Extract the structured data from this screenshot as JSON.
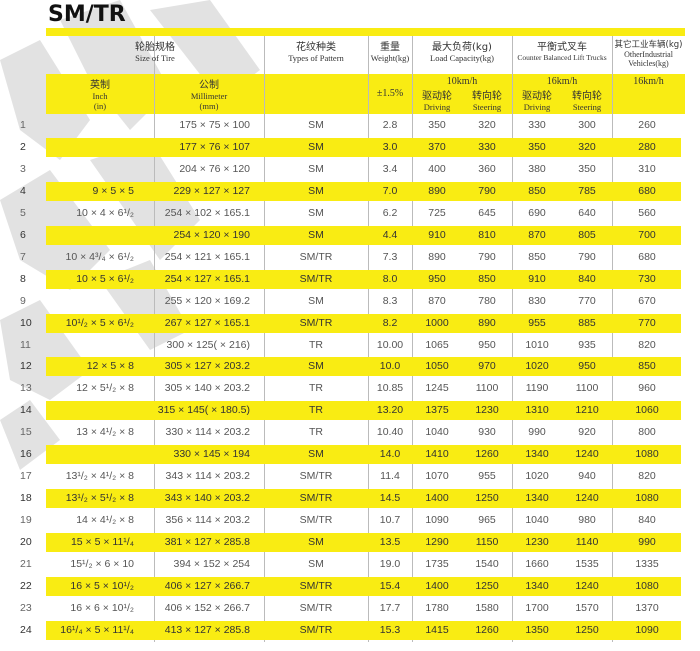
{
  "title": "SM/TR",
  "colors": {
    "highlight": "#f9ec13",
    "text": "#444444"
  },
  "header": {
    "size_cn": "轮胎规格",
    "size_en": "Size of Tire",
    "pattern_cn": "花纹种类",
    "pattern_en": "Types of Pattern",
    "weight_cn": "重量",
    "weight_en": "Weight(kg)",
    "load_cn": "最大负荷(kg)",
    "load_en": "Load Capacity(kg)",
    "counter_cn": "平衡式叉车",
    "counter_en": "Counter Balanced Lift Trucks",
    "other_cn": "其它工业车辆(kg)",
    "other_en": "OtherIndustrial Vehicles(kg)",
    "inch_cn": "英制",
    "inch_en": "Inch",
    "inch_unit": "(in)",
    "mm_cn": "公制",
    "mm_en": "Millimeter",
    "mm_unit": "(mm)",
    "weight_tol": "±1.5%",
    "load_speed": "10km/h",
    "counter_speed": "16km/h",
    "other_speed": "16km/h",
    "driving_cn": "驱动轮",
    "driving_en": "Driving",
    "steering_cn": "转向轮",
    "steering_en": "Steering"
  },
  "rows": [
    {
      "n": "1",
      "inch": "",
      "mm": "175 × 75 × 100",
      "pattern": "SM",
      "weight": "2.8",
      "ld": "350",
      "ls": "320",
      "cd": "330",
      "cs": "300",
      "other": "260"
    },
    {
      "n": "2",
      "inch": "",
      "mm": "177 × 76 × 107",
      "pattern": "SM",
      "weight": "3.0",
      "ld": "370",
      "ls": "330",
      "cd": "350",
      "cs": "320",
      "other": "280"
    },
    {
      "n": "3",
      "inch": "",
      "mm": "204 × 76 × 120",
      "pattern": "SM",
      "weight": "3.4",
      "ld": "400",
      "ls": "360",
      "cd": "380",
      "cs": "350",
      "other": "310"
    },
    {
      "n": "4",
      "inch": "9 × 5 × 5",
      "mm": "229 × 127 × 127",
      "pattern": "SM",
      "weight": "7.0",
      "ld": "890",
      "ls": "790",
      "cd": "850",
      "cs": "785",
      "other": "680"
    },
    {
      "n": "5",
      "inch": "10 × 4 × 6¹/₂",
      "mm": "254 × 102 × 165.1",
      "pattern": "SM",
      "weight": "6.2",
      "ld": "725",
      "ls": "645",
      "cd": "690",
      "cs": "640",
      "other": "560"
    },
    {
      "n": "6",
      "inch": "",
      "mm": "254 × 120 × 190",
      "pattern": "SM",
      "weight": "4.4",
      "ld": "910",
      "ls": "810",
      "cd": "870",
      "cs": "805",
      "other": "700"
    },
    {
      "n": "7",
      "inch": "10 × 4³/₄ × 6¹/₂",
      "mm": "254 × 121 × 165.1",
      "pattern": "SM/TR",
      "weight": "7.3",
      "ld": "890",
      "ls": "790",
      "cd": "850",
      "cs": "790",
      "other": "680"
    },
    {
      "n": "8",
      "inch": "10 × 5 × 6¹/₂",
      "mm": "254 × 127 × 165.1",
      "pattern": "SM/TR",
      "weight": "8.0",
      "ld": "950",
      "ls": "850",
      "cd": "910",
      "cs": "840",
      "other": "730"
    },
    {
      "n": "9",
      "inch": "",
      "mm": "255 × 120 × 169.2",
      "pattern": "SM",
      "weight": "8.3",
      "ld": "870",
      "ls": "780",
      "cd": "830",
      "cs": "770",
      "other": "670"
    },
    {
      "n": "10",
      "inch": "10¹/₂ × 5 × 6¹/₂",
      "mm": "267 × 127 × 165.1",
      "pattern": "SM/TR",
      "weight": "8.2",
      "ld": "1000",
      "ls": "890",
      "cd": "955",
      "cs": "885",
      "other": "770"
    },
    {
      "n": "11",
      "inch": "",
      "mm": "300 × 125( × 216)",
      "pattern": "TR",
      "weight": "10.00",
      "ld": "1065",
      "ls": "950",
      "cd": "1010",
      "cs": "935",
      "other": "820"
    },
    {
      "n": "12",
      "inch": "12 × 5 × 8",
      "mm": "305 × 127 × 203.2",
      "pattern": "SM",
      "weight": "10.0",
      "ld": "1050",
      "ls": "970",
      "cd": "1020",
      "cs": "950",
      "other": "850"
    },
    {
      "n": "13",
      "inch": "12 × 5¹/₂ × 8",
      "mm": "305 × 140 × 203.2",
      "pattern": "TR",
      "weight": "10.85",
      "ld": "1245",
      "ls": "1100",
      "cd": "1190",
      "cs": "1100",
      "other": "960"
    },
    {
      "n": "14",
      "inch": "",
      "mm": "315 × 145( × 180.5)",
      "pattern": "TR",
      "weight": "13.20",
      "ld": "1375",
      "ls": "1230",
      "cd": "1310",
      "cs": "1210",
      "other": "1060"
    },
    {
      "n": "15",
      "inch": "13 × 4¹/₂ × 8",
      "mm": "330 × 114 × 203.2",
      "pattern": "TR",
      "weight": "10.40",
      "ld": "1040",
      "ls": "930",
      "cd": "990",
      "cs": "920",
      "other": "800"
    },
    {
      "n": "16",
      "inch": "",
      "mm": "330 × 145 × 194",
      "pattern": "SM",
      "weight": "14.0",
      "ld": "1410",
      "ls": "1260",
      "cd": "1340",
      "cs": "1240",
      "other": "1080"
    },
    {
      "n": "17",
      "inch": "13¹/₂ × 4¹/₂ × 8",
      "mm": "343 × 114 × 203.2",
      "pattern": "SM/TR",
      "weight": "11.4",
      "ld": "1070",
      "ls": "955",
      "cd": "1020",
      "cs": "940",
      "other": "820"
    },
    {
      "n": "18",
      "inch": "13¹/₂ × 5¹/₂ × 8",
      "mm": "343 × 140 × 203.2",
      "pattern": "SM/TR",
      "weight": "14.5",
      "ld": "1400",
      "ls": "1250",
      "cd": "1340",
      "cs": "1240",
      "other": "1080"
    },
    {
      "n": "19",
      "inch": "14 × 4¹/₂ × 8",
      "mm": "356 × 114 × 203.2",
      "pattern": "SM/TR",
      "weight": "10.7",
      "ld": "1090",
      "ls": "965",
      "cd": "1040",
      "cs": "980",
      "other": "840"
    },
    {
      "n": "20",
      "inch": "15 × 5 × 11¹/₄",
      "mm": "381 × 127 × 285.8",
      "pattern": "SM",
      "weight": "13.5",
      "ld": "1290",
      "ls": "1150",
      "cd": "1230",
      "cs": "1140",
      "other": "990"
    },
    {
      "n": "21",
      "inch": "15¹/₂ × 6 × 10",
      "mm": "394 × 152 × 254",
      "pattern": "SM",
      "weight": "19.0",
      "ld": "1735",
      "ls": "1540",
      "cd": "1660",
      "cs": "1535",
      "other": "1335"
    },
    {
      "n": "22",
      "inch": "16 × 5 × 10¹/₂",
      "mm": "406 × 127 × 266.7",
      "pattern": "SM/TR",
      "weight": "15.4",
      "ld": "1400",
      "ls": "1250",
      "cd": "1340",
      "cs": "1240",
      "other": "1080"
    },
    {
      "n": "23",
      "inch": "16 × 6 × 10¹/₂",
      "mm": "406 × 152 × 266.7",
      "pattern": "SM/TR",
      "weight": "17.7",
      "ld": "1780",
      "ls": "1580",
      "cd": "1700",
      "cs": "1570",
      "other": "1370"
    },
    {
      "n": "24",
      "inch": "16¹/₄ × 5 × 11¹/₄",
      "mm": "413 × 127 × 285.8",
      "pattern": "SM/TR",
      "weight": "15.3",
      "ld": "1415",
      "ls": "1260",
      "cd": "1350",
      "cs": "1250",
      "other": "1090"
    }
  ]
}
